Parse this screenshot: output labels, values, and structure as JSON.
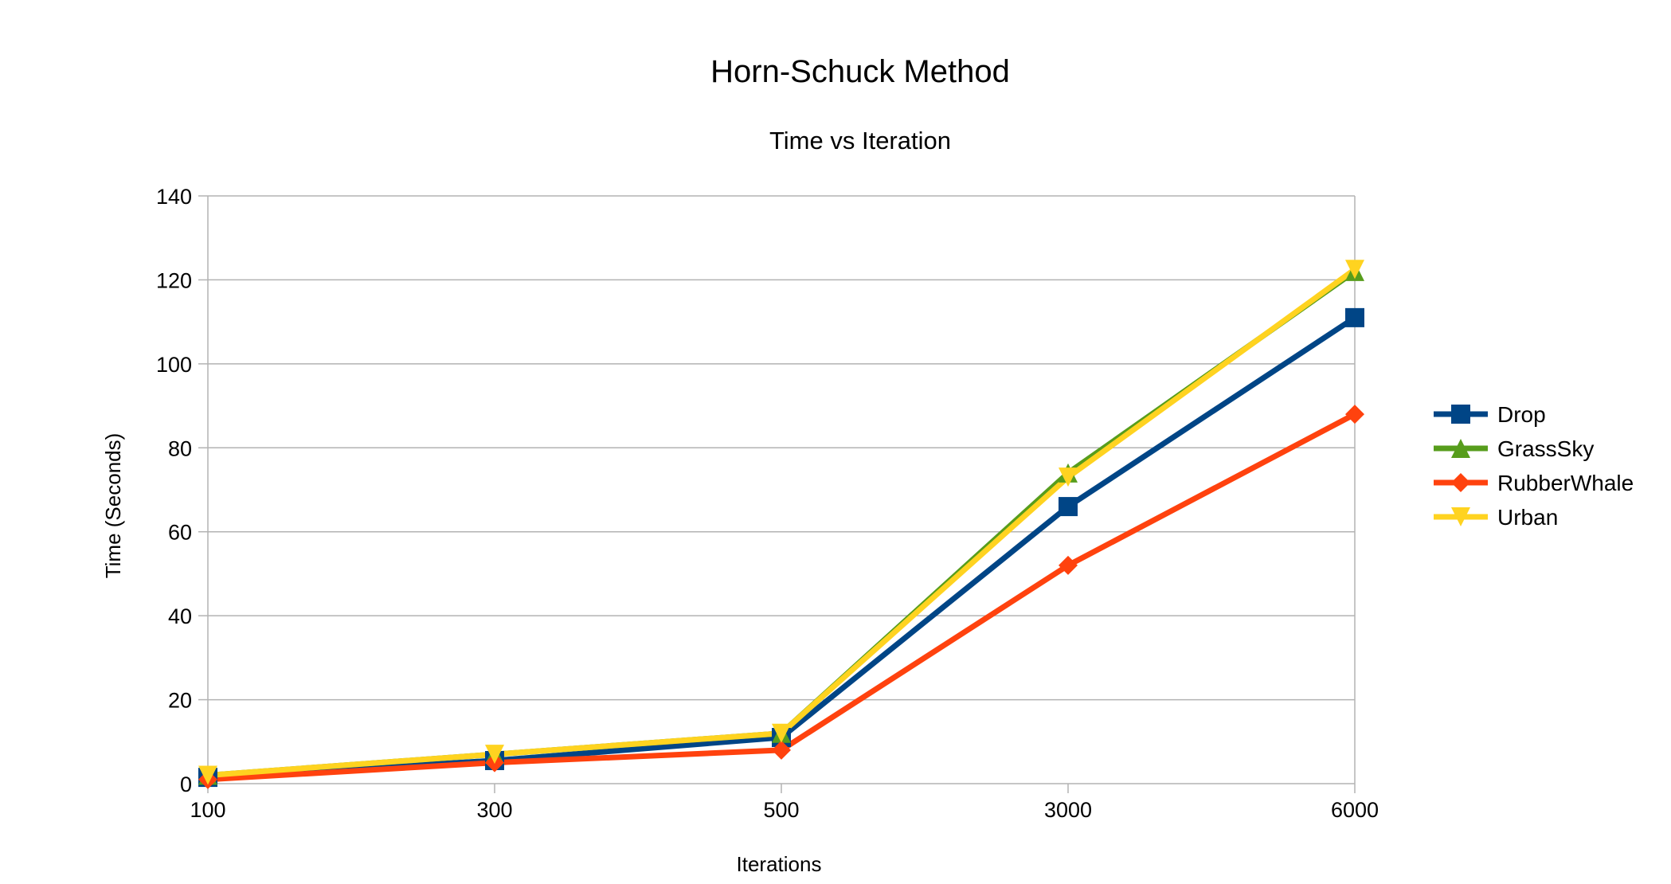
{
  "chart_data": {
    "type": "line",
    "title": "Horn-Schuck Method",
    "subtitle": "Time vs Iteration",
    "xlabel": "Iterations",
    "ylabel": "Time (Seconds)",
    "categories": [
      "100",
      "300",
      "500",
      "3000",
      "6000"
    ],
    "ylim": [
      0,
      140
    ],
    "yticks": [
      0,
      20,
      40,
      60,
      80,
      100,
      120,
      140
    ],
    "grid": true,
    "legend_position": "right",
    "series": [
      {
        "name": "Drop",
        "values": [
          1.5,
          5.5,
          11,
          66,
          111
        ],
        "color": "#004586",
        "marker": "square"
      },
      {
        "name": "GrassSky",
        "values": [
          2,
          7,
          12,
          74,
          122
        ],
        "color": "#579d1c",
        "marker": "triangle-up"
      },
      {
        "name": "RubberWhale",
        "values": [
          1,
          5,
          8,
          52,
          88
        ],
        "color": "#ff420e",
        "marker": "diamond"
      },
      {
        "name": "Urban",
        "values": [
          2,
          7,
          12,
          73,
          122.5
        ],
        "color": "#ffd320",
        "marker": "triangle-down"
      }
    ]
  }
}
